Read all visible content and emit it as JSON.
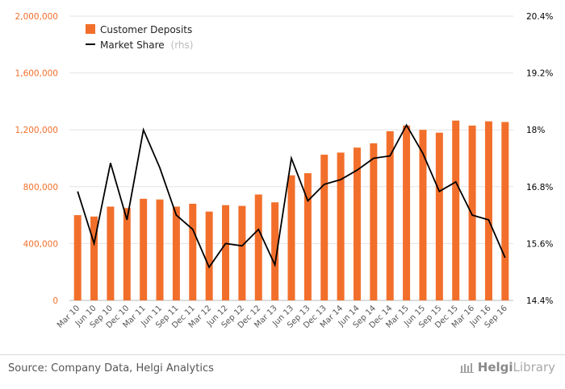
{
  "chart_data": {
    "type": "bar",
    "title": "",
    "xlabel": "",
    "ylabel": "",
    "categories": [
      "Mar 10",
      "Jun 10",
      "Sep 10",
      "Dec 10",
      "Mar 11",
      "Jun 11",
      "Sep 11",
      "Dec 11",
      "Mar 12",
      "Jun 12",
      "Sep 12",
      "Dec 12",
      "Mar 13",
      "Jun 13",
      "Sep 13",
      "Dec 13",
      "Mar 14",
      "Jun 14",
      "Sep 14",
      "Dec 14",
      "Mar 15",
      "Jun 15",
      "Sep 15",
      "Dec 15",
      "Mar 16",
      "Jun 16",
      "Sep 16"
    ],
    "series": [
      {
        "name": "Customer Deposits",
        "type": "bar",
        "axis": "left",
        "color": "#f26f2b",
        "values": [
          600000,
          590000,
          660000,
          650000,
          715000,
          710000,
          660000,
          680000,
          625000,
          670000,
          665000,
          745000,
          690000,
          880000,
          895000,
          1025000,
          1040000,
          1075000,
          1105000,
          1190000,
          1230000,
          1200000,
          1180000,
          1265000,
          1230000,
          1260000,
          1255000
        ]
      },
      {
        "name": "Market Share",
        "suffix": "(rhs)",
        "type": "line",
        "axis": "right",
        "color": "#000000",
        "values": [
          16.7,
          15.6,
          17.3,
          16.1,
          18.0,
          17.2,
          16.2,
          15.9,
          15.1,
          15.6,
          15.55,
          15.9,
          15.15,
          17.4,
          16.5,
          16.85,
          16.95,
          17.15,
          17.4,
          17.45,
          18.1,
          17.5,
          16.7,
          16.9,
          16.2,
          16.1,
          15.3
        ]
      }
    ],
    "ylim_left": [
      0,
      2000000
    ],
    "yticks_left": [
      0,
      400000,
      800000,
      1200000,
      1600000,
      2000000
    ],
    "ytick_labels_left": [
      "0",
      "400,000",
      "800,000",
      "1,200,000",
      "1,600,000",
      "2,000,000"
    ],
    "ylim_right": [
      14.4,
      20.4
    ],
    "yticks_right": [
      14.4,
      15.6,
      16.8,
      18,
      19.2,
      20.4
    ],
    "ytick_labels_right": [
      "14.4%",
      "15.6%",
      "16.8%",
      "18%",
      "19.2%",
      "20.4%"
    ],
    "grid": true,
    "legend_position": "top-left",
    "left_axis_label_color": "#f26f2b",
    "right_axis_label_color": "#000000"
  },
  "footer": {
    "source": "Source: Company Data, Helgi Analytics",
    "brand_part1": "Helgi",
    "brand_part2": "Library"
  }
}
